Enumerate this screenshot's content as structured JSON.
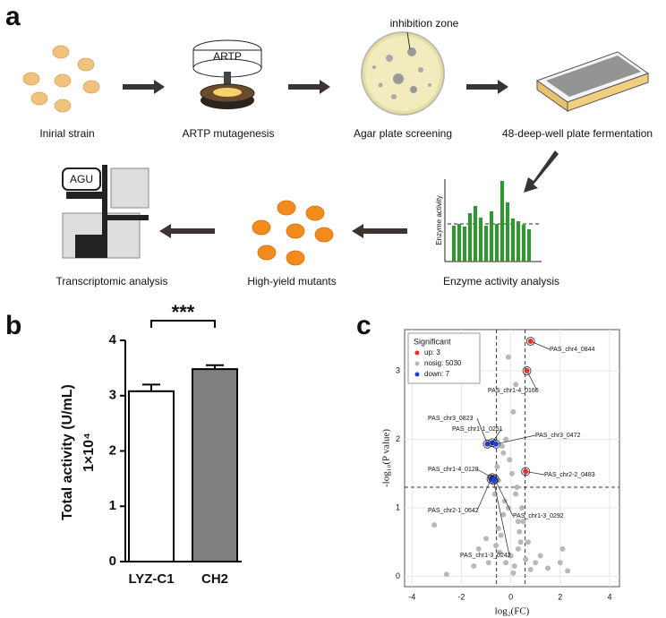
{
  "panels": {
    "a": "a",
    "b": "b",
    "c": "c"
  },
  "diagram": {
    "steps": [
      "Inirial strain",
      "ARTP mutagenesis",
      "Agar plate screening",
      "48-deep-well plate fermentation",
      "Enzyme activity analysis",
      "High-yield mutants",
      "Transcriptomic analysis"
    ],
    "device_label": "ARTP",
    "plate_label": "inhibition zone",
    "activity_axis": "Enzyme activity",
    "transcriptome_label": "AGU"
  },
  "chart_data": [
    {
      "type": "bar",
      "ylabel": "Total activity (U/mL)",
      "yunit": "1×10⁴",
      "categories": [
        "LYZ-C1",
        "CH2"
      ],
      "values": [
        3.08,
        3.48
      ],
      "errors": [
        0.12,
        0.07
      ],
      "colors": [
        "#ffffff",
        "#808080"
      ],
      "annotation": "***",
      "ylim": [
        0,
        4
      ],
      "yticks": [
        0,
        1,
        2,
        3,
        4
      ]
    },
    {
      "type": "scatter",
      "xlabel": "log₂(FC)",
      "ylabel": "-log₁₀(P value)",
      "legend_title": "Significant",
      "legend": "upper left",
      "grid": true,
      "xlim": [
        -4.3,
        4.4
      ],
      "ylim": [
        -0.15,
        3.6
      ],
      "xticks": [
        -4,
        -2,
        0,
        2,
        4
      ],
      "yticks": [
        0,
        1,
        2,
        3
      ],
      "vlines": [
        -0.58,
        0.58
      ],
      "hlines": [
        1.3
      ],
      "series": [
        {
          "name": "up: 3",
          "color": "#e8302a",
          "x": [
            0.8,
            0.65,
            0.6
          ],
          "values": [
            3.43,
            3.0,
            1.53
          ],
          "labels": [
            "PAS_chr4_0844",
            "PAS_chr1-4_0160",
            "PAS_chr2-2_0483"
          ]
        },
        {
          "name": "nosig: 5030",
          "color": "#b8b8b8",
          "x": [
            0.1,
            -0.2,
            0.3,
            -0.4,
            0.5,
            -0.1,
            0.2,
            -0.3,
            0.4,
            -0.5,
            0.0,
            0.15,
            -0.25,
            0.35,
            -0.45,
            0.6,
            -0.6,
            0.8,
            -0.9,
            1.2,
            -1.5,
            2.1,
            -2.6,
            -3.1,
            2.0,
            1.5,
            -1.0,
            0.05,
            -0.05,
            0.25,
            -0.35,
            0.45,
            -0.55,
            0.3,
            -0.2,
            0.1,
            -0.65,
            -0.5,
            0.2,
            -0.3,
            2.3,
            -0.1,
            0.7,
            1.0,
            -1.3
          ],
          "values": [
            0.05,
            0.2,
            0.4,
            0.6,
            0.8,
            1.0,
            1.2,
            0.9,
            0.5,
            0.7,
            0.3,
            0.15,
            1.1,
            0.65,
            0.35,
            0.25,
            0.45,
            0.1,
            0.2,
            0.3,
            0.15,
            0.4,
            0.03,
            0.75,
            0.2,
            0.12,
            0.55,
            1.5,
            1.7,
            1.3,
            1.9,
            1.0,
            1.6,
            0.8,
            2.0,
            2.4,
            1.2,
            1.4,
            2.8,
            1.8,
            0.08,
            3.2,
            0.5,
            0.2,
            0.4
          ]
        },
        {
          "name": "down: 7",
          "color": "#1f3fd8",
          "x": [
            -0.95,
            -0.75,
            -0.6,
            -0.75,
            -0.8,
            -0.65,
            -0.7
          ],
          "values": [
            1.93,
            1.95,
            1.93,
            1.44,
            1.42,
            1.42,
            1.4
          ],
          "labels": [
            "PAS_chr3_0823",
            "PAS_chr1-1_0251",
            "PAS_chr3_0472",
            "PAS_chr1-4_0128",
            "PAS_chr2-1_0642",
            "PAS_chr1-3_0292",
            "PAS_chr1-3_0242"
          ]
        }
      ]
    }
  ]
}
